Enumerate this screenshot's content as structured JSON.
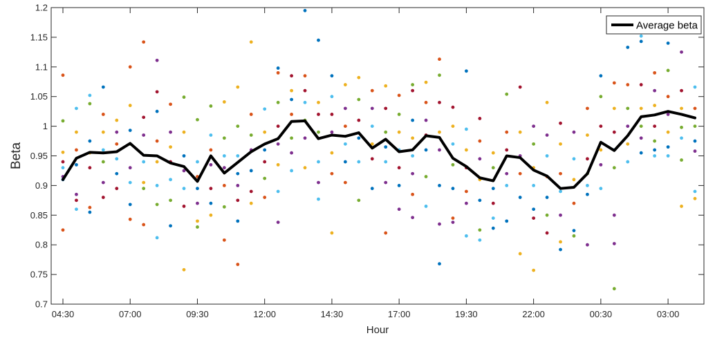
{
  "chart_data": {
    "type": "scatter",
    "title": "",
    "xlabel": "Hour",
    "ylabel": "Beta",
    "ylim": [
      0.7,
      1.2
    ],
    "yticks": [
      0.7,
      0.75,
      0.8,
      0.85,
      0.9,
      0.95,
      1,
      1.05,
      1.1,
      1.15,
      1.2
    ],
    "ytick_labels": [
      "0.7",
      "0.75",
      "0.8",
      "0.85",
      "0.9",
      "0.95",
      "1",
      "1.05",
      "1.1",
      "1.15",
      "1.2"
    ],
    "x_interval_minutes": 30,
    "x_points": 48,
    "xtick_indices": [
      0,
      5,
      10,
      15,
      20,
      25,
      30,
      35,
      40,
      45
    ],
    "xtick_labels": [
      "04:30",
      "07:00",
      "09:30",
      "12:00",
      "14:30",
      "17:00",
      "19:30",
      "22:00",
      "00:30",
      "03:00"
    ],
    "grid": false,
    "legend": {
      "position": "top-right",
      "entries": [
        "Average beta"
      ]
    },
    "colors": [
      "#0072BD",
      "#D95319",
      "#EDB120",
      "#7E2F8E",
      "#77AC30",
      "#4DBEEE",
      "#A2142F"
    ],
    "average_line": {
      "name": "Average beta",
      "color": "#000000",
      "values": [
        0.91,
        0.946,
        0.956,
        0.955,
        0.957,
        0.971,
        0.951,
        0.95,
        0.938,
        0.932,
        0.907,
        0.95,
        0.921,
        0.939,
        0.957,
        0.97,
        0.979,
        1.008,
        1.009,
        0.979,
        0.985,
        0.983,
        0.989,
        0.963,
        0.978,
        0.957,
        0.96,
        0.984,
        0.981,
        0.946,
        0.932,
        0.913,
        0.908,
        0.95,
        0.947,
        0.926,
        0.916,
        0.895,
        0.897,
        0.92,
        0.973,
        0.959,
        0.984,
        1.016,
        1.019,
        1.025,
        1.02,
        1.014
      ]
    },
    "scatter_points": [
      [
        0,
        1.086,
        1
      ],
      [
        0,
        1.009,
        4
      ],
      [
        0,
        0.956,
        2
      ],
      [
        0,
        0.91,
        0
      ],
      [
        0,
        0.825,
        1
      ],
      [
        0,
        0.94,
        6
      ],
      [
        0,
        0.915,
        3
      ],
      [
        0,
        0.93,
        5
      ],
      [
        1,
        1.03,
        5
      ],
      [
        1,
        0.99,
        2
      ],
      [
        1,
        0.96,
        1
      ],
      [
        1,
        0.935,
        0
      ],
      [
        1,
        0.885,
        3
      ],
      [
        1,
        0.86,
        5
      ],
      [
        1,
        0.875,
        6
      ],
      [
        2,
        1.052,
        5
      ],
      [
        2,
        1.038,
        4
      ],
      [
        2,
        0.975,
        0
      ],
      [
        2,
        0.955,
        2
      ],
      [
        2,
        0.93,
        6
      ],
      [
        2,
        0.863,
        1
      ],
      [
        2,
        0.855,
        0
      ],
      [
        3,
        1.066,
        0
      ],
      [
        3,
        1.02,
        1
      ],
      [
        3,
        0.99,
        2
      ],
      [
        3,
        0.96,
        5
      ],
      [
        3,
        0.94,
        4
      ],
      [
        3,
        0.905,
        3
      ],
      [
        3,
        0.88,
        6
      ],
      [
        4,
        1.01,
        2
      ],
      [
        4,
        0.99,
        3
      ],
      [
        4,
        0.97,
        1
      ],
      [
        4,
        0.945,
        5
      ],
      [
        4,
        0.92,
        0
      ],
      [
        4,
        0.895,
        6
      ],
      [
        5,
        1.1,
        1
      ],
      [
        5,
        1.035,
        2
      ],
      [
        5,
        0.993,
        0
      ],
      [
        5,
        0.97,
        4
      ],
      [
        5,
        0.93,
        3
      ],
      [
        5,
        0.905,
        5
      ],
      [
        5,
        0.868,
        0
      ],
      [
        5,
        0.843,
        1
      ],
      [
        6,
        1.142,
        1
      ],
      [
        6,
        1.015,
        6
      ],
      [
        6,
        0.985,
        3
      ],
      [
        6,
        0.94,
        5
      ],
      [
        6,
        0.905,
        2
      ],
      [
        6,
        0.895,
        4
      ],
      [
        6,
        0.834,
        1
      ],
      [
        7,
        1.111,
        3
      ],
      [
        7,
        1.058,
        6
      ],
      [
        7,
        1.025,
        0
      ],
      [
        7,
        0.975,
        1
      ],
      [
        7,
        0.94,
        2
      ],
      [
        7,
        0.9,
        5
      ],
      [
        7,
        0.868,
        4
      ],
      [
        7,
        0.812,
        5
      ],
      [
        8,
        1.037,
        1
      ],
      [
        8,
        0.99,
        3
      ],
      [
        8,
        0.965,
        2
      ],
      [
        8,
        0.94,
        6
      ],
      [
        8,
        0.91,
        5
      ],
      [
        8,
        0.875,
        4
      ],
      [
        8,
        0.832,
        0
      ],
      [
        9,
        1.049,
        4
      ],
      [
        9,
        0.99,
        2
      ],
      [
        9,
        0.95,
        0
      ],
      [
        9,
        0.925,
        3
      ],
      [
        9,
        0.895,
        5
      ],
      [
        9,
        0.865,
        6
      ],
      [
        9,
        0.758,
        2
      ],
      [
        10,
        1.011,
        4
      ],
      [
        10,
        0.94,
        5
      ],
      [
        10,
        0.915,
        1
      ],
      [
        10,
        0.895,
        0
      ],
      [
        10,
        0.87,
        3
      ],
      [
        10,
        0.84,
        2
      ],
      [
        10,
        0.83,
        4
      ],
      [
        11,
        1.034,
        4
      ],
      [
        11,
        0.985,
        5
      ],
      [
        11,
        0.96,
        1
      ],
      [
        11,
        0.935,
        3
      ],
      [
        11,
        0.895,
        6
      ],
      [
        11,
        0.87,
        0
      ],
      [
        11,
        0.85,
        2
      ],
      [
        12,
        1.041,
        2
      ],
      [
        12,
        0.98,
        4
      ],
      [
        12,
        0.95,
        5
      ],
      [
        12,
        0.93,
        3
      ],
      [
        12,
        0.9,
        1
      ],
      [
        12,
        0.864,
        4
      ],
      [
        12,
        0.808,
        1
      ],
      [
        13,
        1.066,
        2
      ],
      [
        13,
        1.0,
        4
      ],
      [
        13,
        0.95,
        5
      ],
      [
        13,
        0.92,
        0
      ],
      [
        13,
        0.9,
        3
      ],
      [
        13,
        0.875,
        6
      ],
      [
        13,
        0.84,
        0
      ],
      [
        13,
        0.767,
        1
      ],
      [
        14,
        1.142,
        2
      ],
      [
        14,
        1.02,
        1
      ],
      [
        14,
        0.985,
        4
      ],
      [
        14,
        0.96,
        3
      ],
      [
        14,
        0.925,
        0
      ],
      [
        14,
        0.89,
        6
      ],
      [
        14,
        0.87,
        2
      ],
      [
        15,
        1.029,
        5
      ],
      [
        15,
        0.99,
        2
      ],
      [
        15,
        0.96,
        0
      ],
      [
        15,
        0.94,
        6
      ],
      [
        15,
        0.912,
        4
      ],
      [
        15,
        0.88,
        1
      ],
      [
        16,
        1.098,
        0
      ],
      [
        16,
        1.09,
        1
      ],
      [
        16,
        1.04,
        4
      ],
      [
        16,
        1.0,
        6
      ],
      [
        16,
        0.97,
        3
      ],
      [
        16,
        0.935,
        2
      ],
      [
        16,
        0.89,
        5
      ],
      [
        16,
        0.838,
        3
      ],
      [
        17,
        1.085,
        6
      ],
      [
        17,
        1.06,
        2
      ],
      [
        17,
        1.045,
        0
      ],
      [
        17,
        1.02,
        1
      ],
      [
        17,
        0.98,
        4
      ],
      [
        17,
        0.955,
        3
      ],
      [
        17,
        0.925,
        5
      ],
      [
        18,
        1.195,
        0
      ],
      [
        18,
        1.085,
        1
      ],
      [
        18,
        1.06,
        6
      ],
      [
        18,
        1.04,
        5
      ],
      [
        18,
        1.01,
        4
      ],
      [
        18,
        0.98,
        3
      ],
      [
        18,
        0.93,
        2
      ],
      [
        19,
        1.145,
        0
      ],
      [
        19,
        1.04,
        2
      ],
      [
        19,
        1.02,
        6
      ],
      [
        19,
        0.99,
        4
      ],
      [
        19,
        0.94,
        5
      ],
      [
        19,
        0.905,
        3
      ],
      [
        19,
        0.877,
        5
      ],
      [
        20,
        1.085,
        0
      ],
      [
        20,
        1.05,
        5
      ],
      [
        20,
        1.02,
        6
      ],
      [
        20,
        0.99,
        3
      ],
      [
        20,
        0.955,
        2
      ],
      [
        20,
        0.92,
        1
      ],
      [
        20,
        0.82,
        2
      ],
      [
        21,
        1.07,
        2
      ],
      [
        21,
        1.03,
        3
      ],
      [
        21,
        1.0,
        1
      ],
      [
        21,
        0.97,
        5
      ],
      [
        21,
        0.94,
        0
      ],
      [
        21,
        0.905,
        1
      ],
      [
        22,
        1.082,
        2
      ],
      [
        22,
        1.045,
        4
      ],
      [
        22,
        1.01,
        6
      ],
      [
        22,
        0.98,
        0
      ],
      [
        22,
        0.94,
        5
      ],
      [
        22,
        0.875,
        4
      ],
      [
        23,
        1.06,
        1
      ],
      [
        23,
        1.03,
        3
      ],
      [
        23,
        1.0,
        5
      ],
      [
        23,
        0.97,
        2
      ],
      [
        23,
        0.945,
        6
      ],
      [
        23,
        0.895,
        0
      ],
      [
        24,
        1.068,
        2
      ],
      [
        24,
        1.03,
        6
      ],
      [
        24,
        0.99,
        4
      ],
      [
        24,
        0.965,
        0
      ],
      [
        24,
        0.94,
        5
      ],
      [
        24,
        0.905,
        3
      ],
      [
        24,
        0.82,
        1
      ],
      [
        25,
        1.052,
        1
      ],
      [
        25,
        1.02,
        4
      ],
      [
        25,
        0.99,
        2
      ],
      [
        25,
        0.96,
        5
      ],
      [
        25,
        0.93,
        6
      ],
      [
        25,
        0.9,
        0
      ],
      [
        25,
        0.86,
        3
      ],
      [
        26,
        1.07,
        4
      ],
      [
        26,
        1.06,
        6
      ],
      [
        26,
        1.01,
        0
      ],
      [
        26,
        0.98,
        2
      ],
      [
        26,
        0.95,
        5
      ],
      [
        26,
        0.92,
        3
      ],
      [
        26,
        0.885,
        1
      ],
      [
        26,
        0.846,
        3
      ],
      [
        27,
        1.074,
        2
      ],
      [
        27,
        1.04,
        1
      ],
      [
        27,
        1.01,
        3
      ],
      [
        27,
        0.985,
        6
      ],
      [
        27,
        0.96,
        0
      ],
      [
        27,
        0.915,
        4
      ],
      [
        27,
        0.865,
        5
      ],
      [
        28,
        1.113,
        1
      ],
      [
        28,
        1.086,
        4
      ],
      [
        28,
        1.04,
        6
      ],
      [
        28,
        0.99,
        2
      ],
      [
        28,
        0.96,
        3
      ],
      [
        28,
        0.9,
        0
      ],
      [
        28,
        0.835,
        3
      ],
      [
        28,
        0.768,
        0
      ],
      [
        29,
        1.032,
        6
      ],
      [
        29,
        1.0,
        2
      ],
      [
        29,
        0.97,
        5
      ],
      [
        29,
        0.935,
        4
      ],
      [
        29,
        0.895,
        0
      ],
      [
        29,
        0.845,
        1
      ],
      [
        29,
        0.838,
        3
      ],
      [
        30,
        1.093,
        0
      ],
      [
        30,
        0.995,
        5
      ],
      [
        30,
        0.96,
        2
      ],
      [
        30,
        0.93,
        6
      ],
      [
        30,
        0.89,
        1
      ],
      [
        30,
        0.87,
        3
      ],
      [
        30,
        0.815,
        5
      ],
      [
        31,
        1.013,
        6
      ],
      [
        31,
        0.975,
        1
      ],
      [
        31,
        0.945,
        3
      ],
      [
        31,
        0.91,
        2
      ],
      [
        31,
        0.875,
        0
      ],
      [
        31,
        0.825,
        4
      ],
      [
        31,
        0.808,
        5
      ],
      [
        32,
        0.955,
        2
      ],
      [
        32,
        0.93,
        4
      ],
      [
        32,
        0.895,
        0
      ],
      [
        32,
        0.87,
        6
      ],
      [
        32,
        0.845,
        5
      ],
      [
        32,
        0.828,
        0
      ],
      [
        33,
        1.054,
        4
      ],
      [
        33,
        0.99,
        1
      ],
      [
        33,
        0.96,
        6
      ],
      [
        33,
        0.92,
        3
      ],
      [
        33,
        0.9,
        5
      ],
      [
        33,
        0.84,
        0
      ],
      [
        34,
        1.066,
        6
      ],
      [
        34,
        0.99,
        2
      ],
      [
        34,
        0.95,
        3
      ],
      [
        34,
        0.92,
        1
      ],
      [
        34,
        0.88,
        0
      ],
      [
        34,
        0.785,
        2
      ],
      [
        35,
        1.0,
        3
      ],
      [
        35,
        0.97,
        4
      ],
      [
        35,
        0.93,
        2
      ],
      [
        35,
        0.9,
        5
      ],
      [
        35,
        0.86,
        0
      ],
      [
        35,
        0.845,
        6
      ],
      [
        35,
        0.757,
        2
      ],
      [
        36,
        1.04,
        2
      ],
      [
        36,
        0.985,
        3
      ],
      [
        36,
        0.95,
        5
      ],
      [
        36,
        0.915,
        1
      ],
      [
        36,
        0.88,
        0
      ],
      [
        36,
        0.85,
        4
      ],
      [
        36,
        0.82,
        6
      ],
      [
        37,
        1.005,
        6
      ],
      [
        37,
        0.97,
        2
      ],
      [
        37,
        0.92,
        1
      ],
      [
        37,
        0.89,
        5
      ],
      [
        37,
        0.85,
        3
      ],
      [
        37,
        0.805,
        2
      ],
      [
        37,
        0.792,
        0
      ],
      [
        38,
        0.99,
        3
      ],
      [
        38,
        0.945,
        5
      ],
      [
        38,
        0.91,
        2
      ],
      [
        38,
        0.87,
        1
      ],
      [
        38,
        0.824,
        0
      ],
      [
        38,
        0.815,
        4
      ],
      [
        39,
        1.03,
        1
      ],
      [
        39,
        0.985,
        2
      ],
      [
        39,
        0.945,
        6
      ],
      [
        39,
        0.92,
        4
      ],
      [
        39,
        0.9,
        5
      ],
      [
        39,
        0.885,
        0
      ],
      [
        39,
        0.8,
        3
      ],
      [
        40,
        1.085,
        0
      ],
      [
        40,
        1.05,
        4
      ],
      [
        40,
        1.0,
        6
      ],
      [
        40,
        0.96,
        2
      ],
      [
        40,
        0.935,
        3
      ],
      [
        40,
        0.895,
        5
      ],
      [
        41,
        1.073,
        1
      ],
      [
        41,
        1.03,
        2
      ],
      [
        41,
        0.99,
        6
      ],
      [
        41,
        0.96,
        0
      ],
      [
        41,
        0.93,
        4
      ],
      [
        41,
        0.85,
        3
      ],
      [
        41,
        0.802,
        3
      ],
      [
        41,
        0.726,
        4
      ],
      [
        42,
        1.133,
        0
      ],
      [
        42,
        1.07,
        1
      ],
      [
        42,
        1.03,
        4
      ],
      [
        42,
        1.0,
        3
      ],
      [
        42,
        0.97,
        2
      ],
      [
        42,
        0.94,
        5
      ],
      [
        43,
        1.152,
        5
      ],
      [
        43,
        1.143,
        0
      ],
      [
        43,
        1.07,
        6
      ],
      [
        43,
        1.03,
        2
      ],
      [
        43,
        1.0,
        4
      ],
      [
        43,
        0.98,
        3
      ],
      [
        43,
        0.955,
        0
      ],
      [
        44,
        1.09,
        1
      ],
      [
        44,
        1.06,
        3
      ],
      [
        44,
        1.035,
        2
      ],
      [
        44,
        1.0,
        6
      ],
      [
        44,
        0.975,
        4
      ],
      [
        44,
        0.96,
        0
      ],
      [
        44,
        0.95,
        5
      ],
      [
        45,
        1.14,
        0
      ],
      [
        45,
        1.094,
        4
      ],
      [
        45,
        1.05,
        1
      ],
      [
        45,
        1.02,
        3
      ],
      [
        45,
        0.99,
        2
      ],
      [
        45,
        0.965,
        0
      ],
      [
        45,
        0.95,
        5
      ],
      [
        46,
        1.125,
        3
      ],
      [
        46,
        1.06,
        6
      ],
      [
        46,
        1.03,
        2
      ],
      [
        46,
        0.998,
        4
      ],
      [
        46,
        0.98,
        5
      ],
      [
        46,
        0.943,
        4
      ],
      [
        46,
        0.865,
        2
      ],
      [
        47,
        1.066,
        5
      ],
      [
        47,
        1.03,
        1
      ],
      [
        47,
        1.0,
        4
      ],
      [
        47,
        0.975,
        0
      ],
      [
        47,
        0.958,
        3
      ],
      [
        47,
        0.89,
        5
      ],
      [
        47,
        0.878,
        2
      ]
    ]
  }
}
